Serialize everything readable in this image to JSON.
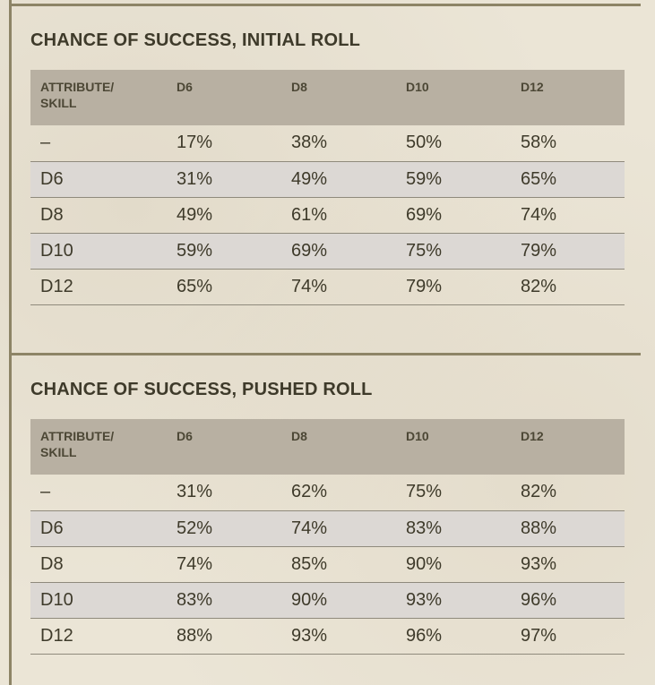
{
  "tables": [
    {
      "title": "CHANCE OF SUCCESS, INITIAL ROLL",
      "header": {
        "attribute_line1": "ATTRIBUTE/",
        "attribute_line2": "SKILL",
        "columns": [
          "D6",
          "D8",
          "D10",
          "D12"
        ]
      },
      "rows": [
        {
          "label": "–",
          "values": [
            "17%",
            "38%",
            "50%",
            "58%"
          ]
        },
        {
          "label": "D6",
          "values": [
            "31%",
            "49%",
            "59%",
            "65%"
          ]
        },
        {
          "label": "D8",
          "values": [
            "49%",
            "61%",
            "69%",
            "74%"
          ]
        },
        {
          "label": "D10",
          "values": [
            "59%",
            "69%",
            "75%",
            "79%"
          ]
        },
        {
          "label": "D12",
          "values": [
            "65%",
            "74%",
            "79%",
            "82%"
          ]
        }
      ]
    },
    {
      "title": "CHANCE OF SUCCESS, PUSHED ROLL",
      "header": {
        "attribute_line1": "ATTRIBUTE/",
        "attribute_line2": "SKILL",
        "columns": [
          "D6",
          "D8",
          "D10",
          "D12"
        ]
      },
      "rows": [
        {
          "label": "–",
          "values": [
            "31%",
            "62%",
            "75%",
            "82%"
          ]
        },
        {
          "label": "D6",
          "values": [
            "52%",
            "74%",
            "83%",
            "88%"
          ]
        },
        {
          "label": "D8",
          "values": [
            "74%",
            "85%",
            "90%",
            "93%"
          ]
        },
        {
          "label": "D10",
          "values": [
            "83%",
            "90%",
            "93%",
            "96%"
          ]
        },
        {
          "label": "D12",
          "values": [
            "88%",
            "93%",
            "96%",
            "97%"
          ]
        }
      ]
    }
  ]
}
